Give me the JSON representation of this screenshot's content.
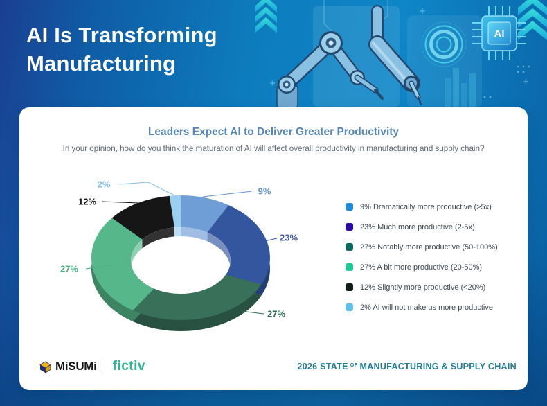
{
  "header": {
    "title_line1": "AI Is Transforming",
    "title_line2": "Manufacturing",
    "chip_label": "AI"
  },
  "card": {
    "title": "Leaders Expect AI to Deliver Greater Productivity",
    "subtitle": "In your opinion, how do you think the maturation of AI will affect overall productivity in manufacturing and supply chain?"
  },
  "chart_data": {
    "type": "pie",
    "variant": "3d-donut",
    "title": "Leaders Expect AI to Deliver Greater Productivity",
    "unit": "%",
    "legend_position": "right",
    "total": 100,
    "slices": [
      {
        "label": "Dramatically more productive (>5x)",
        "value": 9,
        "callout": "9%",
        "color": "#6f9dd5",
        "legend_color": "#1f8ad6",
        "label_color": "#6593cf"
      },
      {
        "label": "Much more productive (2-5x)",
        "value": 23,
        "callout": "23%",
        "color": "#34569e",
        "legend_color": "#2a0aa2",
        "label_color": "#3a55a3"
      },
      {
        "label": "Notably more productive (50-100%)",
        "value": 27,
        "callout": "27%",
        "color": "#38705a",
        "legend_color": "#0c6a5f",
        "label_color": "#2f6853"
      },
      {
        "label": "A bit more productive (20-50%)",
        "value": 27,
        "callout": "27%",
        "color": "#55b78a",
        "legend_color": "#20c795",
        "label_color": "#4caf85"
      },
      {
        "label": "Slightly more productive (<20%)",
        "value": 12,
        "callout": "12%",
        "color": "#161616",
        "legend_color": "#0d1f18",
        "label_color": "#111111"
      },
      {
        "label": "AI will not make us more productive",
        "value": 2,
        "callout": "2%",
        "color": "#9bcff0",
        "legend_color": "#5fc0ee",
        "label_color": "#7fc0ec"
      }
    ]
  },
  "footer": {
    "brand1": "MiSUMi",
    "brand2": "fictiv",
    "campaign_prefix": "2026 STATE",
    "campaign_of": "OF",
    "campaign_suffix": "MANUFACTURING & SUPPLY CHAIN"
  },
  "colors": {
    "card_title": "#5585b0",
    "subtitle": "#5b6770",
    "legend_text": "#3d4852",
    "fictiv_green": "#2bb693",
    "campaign_teal": "#1f7a93",
    "accent_cyan": "#2fc9e8",
    "background_navy": "#1b3f92",
    "background_blue": "#0d82c3"
  }
}
